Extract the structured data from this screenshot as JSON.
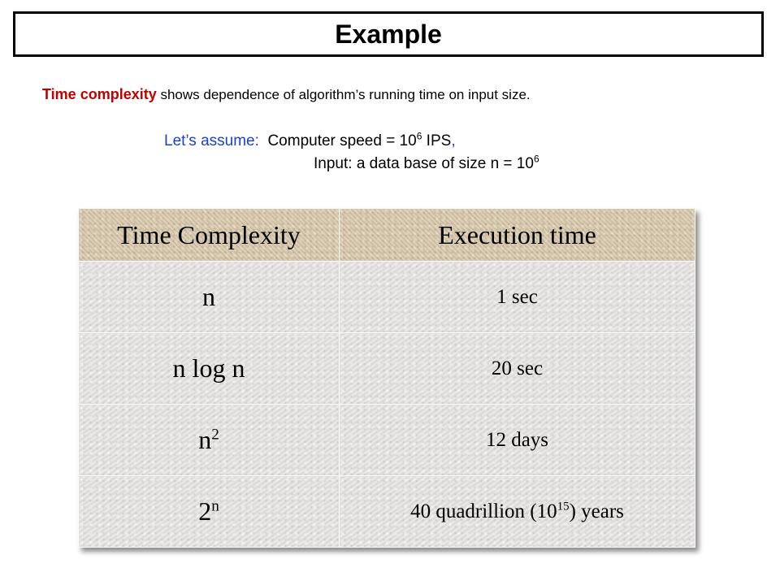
{
  "slide": {
    "title": "Example"
  },
  "definition": {
    "term": "Time complexity",
    "rest": " shows dependence of algorithm’s running time on input size."
  },
  "assumptions": {
    "lead": "Let’s assume:",
    "speed_label": "Computer speed  = 10",
    "speed_exp": "6",
    "speed_unit": " IPS",
    "speed_comma": ",",
    "input_label": "Input: a data base of size n = 10",
    "input_exp": "6"
  },
  "table": {
    "headers": [
      "Time Complexity",
      "Execution time"
    ],
    "rows": [
      {
        "complexity_base": "n",
        "complexity_exp": "",
        "time_pre": "1 sec",
        "time_exp": "",
        "time_post": ""
      },
      {
        "complexity_base": "n log n",
        "complexity_exp": "",
        "time_pre": "20 sec",
        "time_exp": "",
        "time_post": ""
      },
      {
        "complexity_base": "n",
        "complexity_exp": "2",
        "time_pre": "12 days",
        "time_exp": "",
        "time_post": ""
      },
      {
        "complexity_base": "2",
        "complexity_exp": "n",
        "time_pre": "40 quadrillion (10",
        "time_exp": "15",
        "time_post": ") years"
      }
    ]
  }
}
